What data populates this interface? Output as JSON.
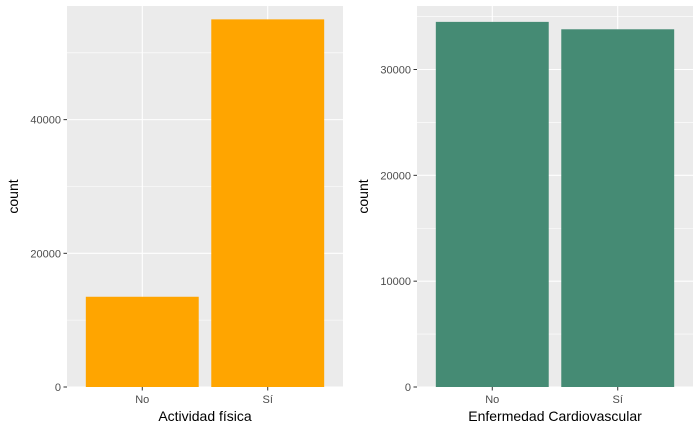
{
  "chart_data": [
    {
      "type": "bar",
      "categories": [
        "No",
        "Sí"
      ],
      "values": [
        13500,
        55000
      ],
      "ylim": [
        0,
        57000
      ],
      "yticks": [
        0,
        20000,
        40000
      ],
      "ytick_labels": [
        "0",
        "20000",
        "40000"
      ],
      "xlabel": "Actividad física",
      "ylabel": "count",
      "fill": "#FFA500",
      "panel_bg": "#EBEBEB",
      "grid": true
    },
    {
      "type": "bar",
      "categories": [
        "No",
        "Sí"
      ],
      "values": [
        34500,
        33800
      ],
      "ylim": [
        0,
        36000
      ],
      "yticks": [
        0,
        10000,
        20000,
        30000
      ],
      "ytick_labels": [
        "0",
        "10000",
        "20000",
        "30000"
      ],
      "xlabel": "Enfermedad Cardiovascular",
      "ylabel": "count",
      "fill": "#458B74",
      "panel_bg": "#EBEBEB",
      "grid": true
    }
  ]
}
